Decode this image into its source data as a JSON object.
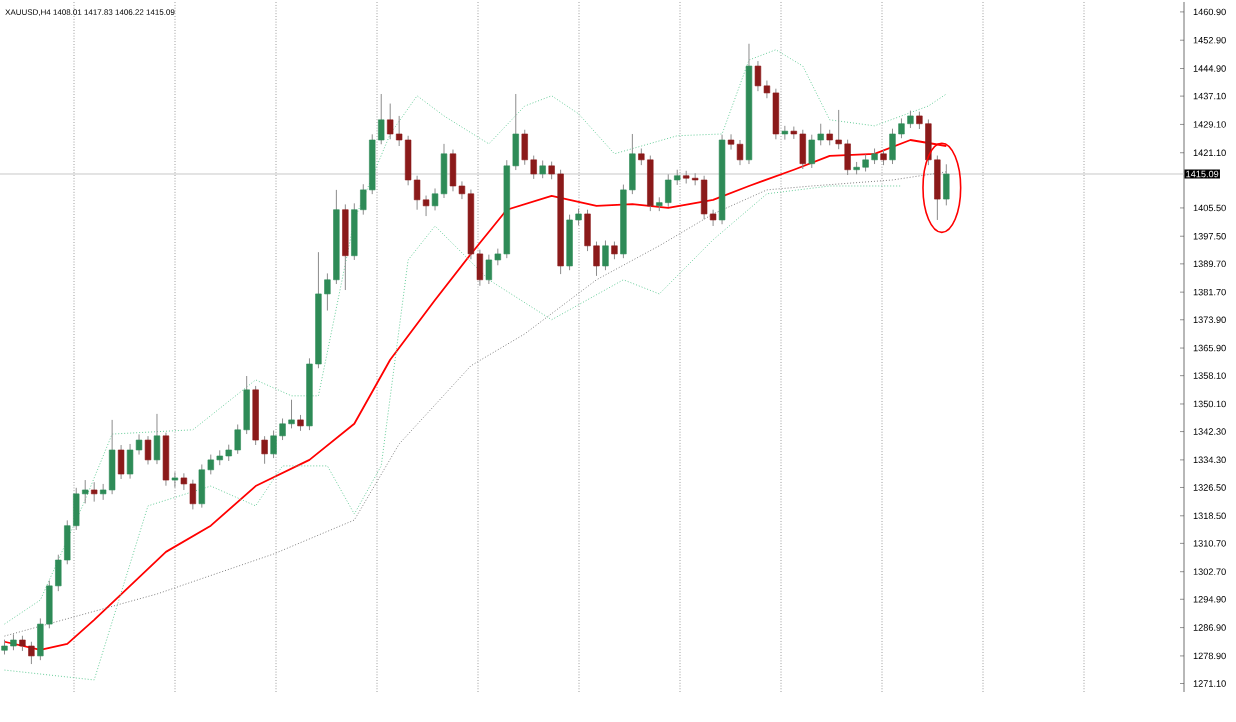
{
  "chart_data": {
    "type": "candlestick",
    "title": "XAUUSD,H4 1408.01 1417.83 1406.22 1415.09",
    "categories": [
      null,
      null,
      null,
      null,
      null,
      null,
      null,
      null,
      null,
      null,
      null,
      null,
      null,
      null,
      null,
      null,
      null,
      null,
      null,
      null,
      null,
      null,
      null,
      null,
      null,
      null,
      null,
      null,
      null,
      null,
      null,
      null,
      null,
      null,
      null,
      null,
      null,
      null,
      null,
      null,
      null,
      null,
      null,
      null,
      null,
      null,
      null,
      null,
      null,
      null,
      null,
      null,
      null,
      null,
      null,
      null,
      null,
      null,
      null,
      null,
      null,
      null,
      null,
      null,
      null,
      null,
      null,
      null,
      null,
      null,
      null,
      null,
      null,
      null,
      null,
      null,
      null,
      null,
      null,
      null,
      null,
      null,
      null,
      null,
      null,
      null,
      null,
      null,
      null,
      null,
      null,
      null,
      null,
      null,
      null,
      null,
      null,
      null,
      null,
      null,
      null,
      null,
      null,
      null,
      null,
      null,
      null,
      null,
      null,
      null,
      null,
      null,
      null,
      null,
      null,
      null,
      null,
      null,
      null,
      null,
      null,
      null,
      null,
      null,
      null,
      null,
      null,
      null,
      null,
      null,
      null,
      null
    ],
    "ohlc": [
      [
        1280.5,
        1283.5,
        1279.3,
        1281.7
      ],
      [
        1281.7,
        1285.0,
        1280.5,
        1283.4
      ],
      [
        1283.4,
        1284.6,
        1280.3,
        1281.7
      ],
      [
        1281.7,
        1282.9,
        1276.6,
        1278.9
      ],
      [
        1278.9,
        1289.5,
        1277.7,
        1287.9
      ],
      [
        1287.9,
        1300.2,
        1286.7,
        1298.7
      ],
      [
        1298.7,
        1307.5,
        1297.2,
        1306.0
      ],
      [
        1306.0,
        1317.2,
        1304.8,
        1315.7
      ],
      [
        1315.7,
        1326.4,
        1314.5,
        1324.7
      ],
      [
        1324.7,
        1328.6,
        1322.0,
        1325.8
      ],
      [
        1325.8,
        1328.0,
        1322.5,
        1324.7
      ],
      [
        1324.7,
        1327.5,
        1323.0,
        1325.8
      ],
      [
        1325.8,
        1345.6,
        1324.6,
        1337.1
      ],
      [
        1337.1,
        1338.5,
        1328.9,
        1330.3
      ],
      [
        1330.3,
        1338.8,
        1329.0,
        1337.1
      ],
      [
        1337.1,
        1341.5,
        1335.8,
        1339.9
      ],
      [
        1339.9,
        1341.0,
        1333.0,
        1334.3
      ],
      [
        1334.3,
        1347.3,
        1333.1,
        1341.1
      ],
      [
        1341.1,
        1342.0,
        1327.0,
        1328.6
      ],
      [
        1328.6,
        1330.8,
        1326.5,
        1329.2
      ],
      [
        1329.2,
        1330.5,
        1325.8,
        1327.5
      ],
      [
        1327.5,
        1328.7,
        1320.3,
        1321.9
      ],
      [
        1321.9,
        1333.0,
        1320.8,
        1331.5
      ],
      [
        1331.5,
        1335.8,
        1330.2,
        1334.3
      ],
      [
        1334.3,
        1337.0,
        1332.8,
        1335.4
      ],
      [
        1335.4,
        1338.6,
        1334.0,
        1337.1
      ],
      [
        1337.1,
        1344.3,
        1336.0,
        1342.8
      ],
      [
        1342.8,
        1358.0,
        1341.6,
        1354.1
      ],
      [
        1354.1,
        1355.2,
        1338.5,
        1339.9
      ],
      [
        1339.9,
        1341.0,
        1333.2,
        1336.0
      ],
      [
        1336.0,
        1342.6,
        1334.8,
        1341.1
      ],
      [
        1341.1,
        1346.0,
        1339.9,
        1344.5
      ],
      [
        1344.5,
        1351.3,
        1343.2,
        1345.6
      ],
      [
        1345.6,
        1347.0,
        1342.5,
        1343.9
      ],
      [
        1343.9,
        1363.0,
        1342.7,
        1361.4
      ],
      [
        1361.4,
        1393.0,
        1360.2,
        1381.2
      ],
      [
        1381.2,
        1387.0,
        1376.5,
        1385.2
      ],
      [
        1385.2,
        1410.6,
        1384.0,
        1405.0
      ],
      [
        1405.0,
        1406.5,
        1382.3,
        1392.0
      ],
      [
        1392.0,
        1406.8,
        1390.8,
        1405.0
      ],
      [
        1405.0,
        1412.2,
        1403.6,
        1410.6
      ],
      [
        1410.6,
        1426.3,
        1409.4,
        1424.7
      ],
      [
        1424.7,
        1437.7,
        1423.5,
        1430.4
      ],
      [
        1430.4,
        1435.0,
        1424.9,
        1426.4
      ],
      [
        1426.4,
        1431.5,
        1423.0,
        1424.7
      ],
      [
        1424.7,
        1425.9,
        1411.9,
        1413.4
      ],
      [
        1413.4,
        1414.6,
        1405.0,
        1407.8
      ],
      [
        1407.8,
        1409.0,
        1403.2,
        1406.1
      ],
      [
        1406.1,
        1411.0,
        1404.8,
        1409.5
      ],
      [
        1409.5,
        1423.6,
        1408.3,
        1420.8
      ],
      [
        1420.8,
        1422.0,
        1410.2,
        1411.7
      ],
      [
        1411.7,
        1413.0,
        1408.0,
        1409.5
      ],
      [
        1409.5,
        1410.7,
        1391.0,
        1392.5
      ],
      [
        1392.5,
        1393.7,
        1383.5,
        1385.2
      ],
      [
        1385.2,
        1392.3,
        1384.0,
        1390.8
      ],
      [
        1390.8,
        1394.0,
        1389.3,
        1392.5
      ],
      [
        1392.5,
        1419.0,
        1391.3,
        1417.4
      ],
      [
        1417.4,
        1437.7,
        1416.2,
        1426.4
      ],
      [
        1426.4,
        1427.6,
        1417.7,
        1419.1
      ],
      [
        1419.1,
        1420.3,
        1413.7,
        1415.1
      ],
      [
        1415.1,
        1418.9,
        1413.9,
        1417.4
      ],
      [
        1417.4,
        1418.6,
        1413.6,
        1415.1
      ],
      [
        1415.1,
        1416.3,
        1386.8,
        1389.1
      ],
      [
        1389.1,
        1403.6,
        1387.9,
        1402.1
      ],
      [
        1402.1,
        1405.3,
        1400.6,
        1403.8
      ],
      [
        1403.8,
        1405.0,
        1393.3,
        1394.8
      ],
      [
        1394.8,
        1396.0,
        1386.3,
        1389.1
      ],
      [
        1389.1,
        1396.3,
        1387.9,
        1394.8
      ],
      [
        1394.8,
        1396.0,
        1391.0,
        1392.5
      ],
      [
        1392.5,
        1412.1,
        1391.3,
        1410.6
      ],
      [
        1410.6,
        1426.4,
        1409.4,
        1420.8
      ],
      [
        1420.8,
        1422.3,
        1417.6,
        1419.1
      ],
      [
        1419.1,
        1420.3,
        1404.6,
        1406.1
      ],
      [
        1406.1,
        1408.5,
        1404.6,
        1407.0
      ],
      [
        1407.0,
        1415.0,
        1405.8,
        1413.4
      ],
      [
        1413.4,
        1416.3,
        1412.0,
        1414.6
      ],
      [
        1414.6,
        1416.0,
        1412.4,
        1413.9
      ],
      [
        1413.9,
        1415.3,
        1411.9,
        1413.4
      ],
      [
        1413.4,
        1414.6,
        1402.3,
        1403.8
      ],
      [
        1403.8,
        1405.0,
        1400.4,
        1402.1
      ],
      [
        1402.1,
        1426.2,
        1400.9,
        1424.7
      ],
      [
        1424.7,
        1426.3,
        1422.0,
        1423.5
      ],
      [
        1423.5,
        1424.7,
        1417.6,
        1419.1
      ],
      [
        1419.1,
        1451.9,
        1417.9,
        1445.6
      ],
      [
        1445.6,
        1447.0,
        1438.5,
        1440.0
      ],
      [
        1440.0,
        1441.5,
        1436.5,
        1438.0
      ],
      [
        1438.0,
        1439.2,
        1424.9,
        1426.4
      ],
      [
        1426.4,
        1428.7,
        1424.8,
        1427.2
      ],
      [
        1427.2,
        1428.5,
        1425.0,
        1426.4
      ],
      [
        1426.4,
        1427.6,
        1416.5,
        1418.0
      ],
      [
        1418.0,
        1426.2,
        1416.8,
        1424.7
      ],
      [
        1424.7,
        1429.3,
        1423.2,
        1426.4
      ],
      [
        1426.4,
        1427.6,
        1423.2,
        1424.7
      ],
      [
        1424.7,
        1433.2,
        1422.1,
        1423.6
      ],
      [
        1423.6,
        1424.8,
        1414.8,
        1416.3
      ],
      [
        1416.3,
        1418.5,
        1415.0,
        1417.0
      ],
      [
        1417.0,
        1420.6,
        1415.8,
        1419.1
      ],
      [
        1419.1,
        1422.3,
        1417.9,
        1420.8
      ],
      [
        1420.8,
        1422.0,
        1417.6,
        1419.1
      ],
      [
        1419.1,
        1427.9,
        1417.9,
        1426.4
      ],
      [
        1426.4,
        1430.8,
        1425.2,
        1429.3
      ],
      [
        1429.3,
        1433.0,
        1428.1,
        1431.5
      ],
      [
        1431.5,
        1432.7,
        1427.8,
        1429.3
      ],
      [
        1429.3,
        1430.5,
        1417.6,
        1419.1
      ],
      [
        1419.1,
        1420.3,
        1402.1,
        1408.0
      ],
      [
        1408.01,
        1417.83,
        1406.22,
        1415.09
      ],
      null,
      null,
      null,
      null,
      null,
      null,
      null,
      null,
      null,
      null,
      null,
      null,
      null,
      null,
      null,
      null,
      null,
      null,
      null,
      null,
      null,
      null,
      null,
      null,
      null,
      null
    ],
    "series": [
      {
        "type": "line",
        "color": "#ff0000",
        "line_style": "solid",
        "values": [
          1282.9,
          null,
          null,
          null,
          1280.6,
          null,
          null,
          1282.3,
          null,
          null,
          1289.1,
          null,
          null,
          null,
          1298.7,
          null,
          null,
          null,
          1308.3,
          null,
          null,
          null,
          null,
          1315.7,
          null,
          null,
          null,
          null,
          1326.9,
          null,
          null,
          null,
          null,
          null,
          1334.3,
          null,
          null,
          null,
          null,
          1344.5,
          null,
          null,
          null,
          1362.6,
          null,
          null,
          null,
          null,
          1379.5,
          null,
          null,
          null,
          1392.5,
          null,
          null,
          null,
          1405.0,
          null,
          null,
          null,
          null,
          1408.9,
          null,
          null,
          null,
          null,
          1406.1,
          null,
          null,
          null,
          1406.6,
          null,
          null,
          null,
          1405.5,
          null,
          null,
          null,
          null,
          1407.8,
          null,
          null,
          null,
          1411.7,
          null,
          null,
          null,
          null,
          1416.3,
          null,
          null,
          null,
          1420.2,
          null,
          null,
          null,
          null,
          1420.8,
          null,
          null,
          null,
          1424.7,
          null,
          null,
          null,
          1423.0,
          null,
          null,
          null,
          null,
          null,
          null,
          null,
          null,
          null,
          null,
          null,
          null,
          null,
          null,
          null,
          null,
          null,
          null,
          null,
          null,
          null,
          null,
          null,
          null,
          null,
          null
        ]
      },
      {
        "type": "line",
        "color": "#808080",
        "line_style": "dotted",
        "values": [
          1284.5,
          null,
          null,
          null,
          null,
          null,
          null,
          null,
          null,
          null,
          null,
          null,
          null,
          null,
          null,
          null,
          null,
          1296.4,
          null,
          null,
          null,
          null,
          null,
          null,
          null,
          null,
          null,
          null,
          null,
          null,
          1307.7,
          null,
          null,
          null,
          null,
          null,
          null,
          null,
          null,
          1317.3,
          null,
          null,
          null,
          null,
          1338.8,
          null,
          null,
          null,
          null,
          null,
          null,
          null,
          1360.9,
          null,
          null,
          null,
          null,
          null,
          1369.9,
          null,
          null,
          null,
          null,
          null,
          null,
          null,
          1385.2,
          null,
          null,
          null,
          null,
          null,
          null,
          1394.8,
          null,
          null,
          null,
          null,
          null,
          1403.8,
          null,
          null,
          null,
          null,
          null,
          1410.6,
          null,
          null,
          null,
          null,
          1411.7,
          null,
          null,
          null,
          null,
          null,
          null,
          null,
          null,
          1413.4,
          null,
          null,
          null,
          null,
          null,
          1415.7,
          null,
          null,
          null,
          null,
          null,
          null,
          null,
          null,
          null,
          null,
          null,
          null,
          null,
          null,
          null,
          null,
          null,
          null,
          null,
          null,
          null,
          null,
          null,
          null,
          null,
          null
        ]
      },
      {
        "type": "line",
        "color": "#66cc99",
        "line_style": "dotted",
        "values": [
          1287.9,
          null,
          null,
          null,
          1294.7,
          null,
          null,
          null,
          null,
          1323.0,
          null,
          null,
          1341.6,
          null,
          null,
          null,
          null,
          null,
          null,
          null,
          null,
          1342.8,
          null,
          null,
          null,
          null,
          null,
          null,
          1356.9,
          null,
          null,
          null,
          1352.4,
          null,
          null,
          1352.4,
          null,
          null,
          null,
          1402.1,
          null,
          null,
          null,
          1426.4,
          null,
          null,
          1437.2,
          null,
          null,
          1431.5,
          null,
          null,
          null,
          null,
          1423.6,
          null,
          null,
          null,
          1434.3,
          null,
          null,
          1437.2,
          null,
          null,
          1432.1,
          null,
          null,
          null,
          1420.8,
          null,
          null,
          null,
          null,
          null,
          null,
          1425.9,
          null,
          null,
          null,
          null,
          1426.4,
          null,
          null,
          1447.3,
          null,
          null,
          1450.2,
          null,
          null,
          1445.6,
          null,
          null,
          1430.4,
          null,
          null,
          null,
          null,
          1428.7,
          null,
          null,
          null,
          null,
          null,
          1434.3,
          null,
          1437.7,
          null,
          null,
          null,
          null,
          null,
          null,
          null,
          null,
          null,
          null,
          null,
          null,
          null,
          null,
          null,
          null,
          null,
          null,
          null,
          null,
          null,
          null,
          null,
          null,
          null,
          null
        ]
      },
      {
        "type": "line",
        "color": "#66cc99",
        "line_style": "dotted",
        "values": [
          1274.9,
          null,
          null,
          null,
          null,
          null,
          null,
          null,
          null,
          null,
          1272.1,
          null,
          null,
          null,
          null,
          null,
          1321.3,
          null,
          null,
          null,
          null,
          null,
          null,
          1326.9,
          null,
          null,
          null,
          null,
          1321.3,
          null,
          null,
          1332.6,
          null,
          null,
          null,
          null,
          1332.6,
          null,
          null,
          1319.0,
          null,
          null,
          1332.6,
          null,
          null,
          1390.8,
          null,
          null,
          1400.4,
          null,
          null,
          null,
          null,
          null,
          1385.2,
          null,
          null,
          null,
          null,
          null,
          null,
          1373.9,
          null,
          null,
          null,
          null,
          null,
          null,
          null,
          1385.2,
          null,
          null,
          null,
          1381.2,
          null,
          null,
          null,
          null,
          null,
          1396.5,
          null,
          null,
          null,
          null,
          null,
          1409.5,
          null,
          null,
          null,
          null,
          null,
          null,
          1411.7,
          null,
          null,
          null,
          null,
          null,
          null,
          null,
          1411.7,
          null,
          null,
          null,
          null,
          null,
          null,
          null,
          null,
          null,
          null,
          null,
          null,
          null,
          null,
          null,
          null,
          null,
          null,
          null,
          null,
          null,
          null,
          null,
          null,
          null,
          null,
          null,
          null,
          null,
          null,
          null
        ]
      }
    ],
    "ylim": [
      1268.7,
      1463.7
    ],
    "yticks": [
      {
        "value": 1460.9,
        "label": "1460.90"
      },
      {
        "value": 1452.9,
        "label": "1452.90"
      },
      {
        "value": 1444.9,
        "label": "1444.90"
      },
      {
        "value": 1437.1,
        "label": "1437.10"
      },
      {
        "value": 1429.1,
        "label": "1429.10"
      },
      {
        "value": 1421.1,
        "label": "1421.10"
      },
      {
        "value": 1405.5,
        "label": "1405.50"
      },
      {
        "value": 1397.5,
        "label": "1397.50"
      },
      {
        "value": 1389.7,
        "label": "1389.70"
      },
      {
        "value": 1381.7,
        "label": "1381.70"
      },
      {
        "value": 1373.9,
        "label": "1373.90"
      },
      {
        "value": 1365.9,
        "label": "1365.90"
      },
      {
        "value": 1358.1,
        "label": "1358.10"
      },
      {
        "value": 1350.1,
        "label": "1350.10"
      },
      {
        "value": 1342.3,
        "label": "1342.30"
      },
      {
        "value": 1334.3,
        "label": "1334.30"
      },
      {
        "value": 1326.5,
        "label": "1326.50"
      },
      {
        "value": 1318.5,
        "label": "1318.50"
      },
      {
        "value": 1310.7,
        "label": "1310.70"
      },
      {
        "value": 1302.7,
        "label": "1302.70"
      },
      {
        "value": 1294.9,
        "label": "1294.90"
      },
      {
        "value": 1286.9,
        "label": "1286.90"
      },
      {
        "value": 1278.9,
        "label": "1278.90"
      },
      {
        "value": 1271.1,
        "label": "1271.10"
      }
    ],
    "ref_lines": [
      {
        "axis": "y",
        "value": 1415.09,
        "label": "1415.09",
        "color": "#c8c8c8"
      }
    ],
    "tick_labels": "y"
  }
}
